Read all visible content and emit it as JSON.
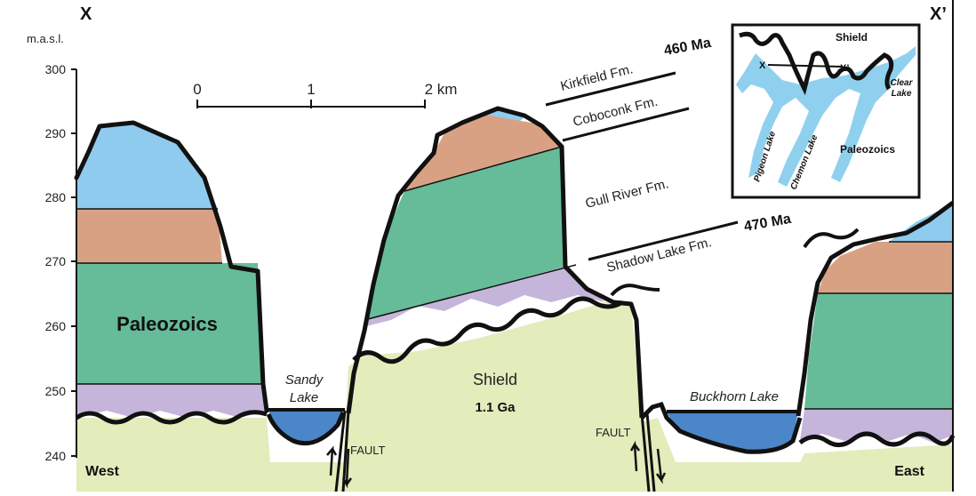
{
  "section": {
    "left_marker": "X",
    "right_marker": "X’",
    "axis_unit": "m.a.s.l.",
    "elevation_ticks": [
      "300",
      "290",
      "280",
      "270",
      "260",
      "250",
      "240"
    ],
    "scale_bar": {
      "ticks": [
        "0",
        "1",
        "2 km"
      ]
    },
    "direction_west": "West",
    "direction_east": "East"
  },
  "units": {
    "paleozoics": "Paleozoics",
    "shield": "Shield",
    "shield_age": "1.1 Ga",
    "formations": {
      "kirkfield": "Kirkfield Fm.",
      "coboconk": "Coboconk Fm.",
      "gull_river": "Gull River Fm.",
      "shadow_lake": "Shadow Lake Fm."
    },
    "age_top": "460 Ma",
    "age_bottom": "470 Ma"
  },
  "features": {
    "sandy_lake_1": "Sandy",
    "sandy_lake_2": "Lake",
    "buckhorn_lake": "Buckhorn Lake",
    "fault_left": "FAULT",
    "fault_right": "FAULT"
  },
  "inset_map": {
    "shield": "Shield",
    "paleozoics": "Paleozoics",
    "clear_lake_1": "Clear",
    "clear_lake_2": "Lake",
    "pigeon_lake": "Pigeon Lake",
    "chemong_lake": "Chemon Lake",
    "x_marker": "X",
    "x_prime_marker": "X’"
  },
  "colors": {
    "kirkfield": "#8fcbee",
    "coboconk": "#d9a184",
    "gull_river": "#66bc98",
    "shadow_lake": "#c6b5da",
    "shield": "#e3ecbb",
    "lake_water": "#4b86c8",
    "map_water": "#8fd0ee"
  }
}
